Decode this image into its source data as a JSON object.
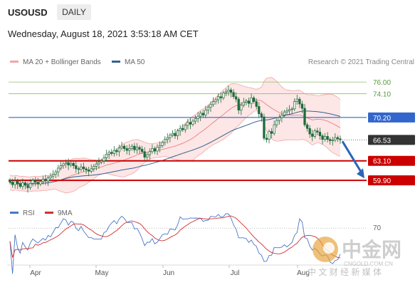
{
  "header": {
    "symbol": "USOUSD",
    "timeframe": "DAILY",
    "datetime": "Wednesday, August 18, 2021 3:53:18 AM CET"
  },
  "legend": {
    "bb_label": "MA 20 + Bollinger Bands",
    "ma50_label": "MA 50",
    "rsi_label": "RSI",
    "ma9_label": "9MA",
    "credit": "Research © 2021 Trading Central"
  },
  "watermark": {
    "cn_name": "中金网",
    "cn_sub": "中 文 财 经 新 媒 体",
    "site": "CNGOLD.COM.CN"
  },
  "colors": {
    "bb": "#f4a6a6",
    "ma50": "#35618f",
    "rsi": "#4a76c9",
    "ma9": "#d0302a",
    "resistance": "#8ec06c",
    "pivot": "#3366cc",
    "support": "#cc0000",
    "candle": "#1f6b3a"
  },
  "chart_data": {
    "type": "candlestick",
    "price_scale": {
      "min": 57,
      "max": 78
    },
    "x_labels": [
      "Apr",
      "May",
      "Jun",
      "Jul",
      "Aug"
    ],
    "levels": [
      {
        "value": 76.0,
        "label": "76.00",
        "kind": "resistance"
      },
      {
        "value": 74.1,
        "label": "74.10",
        "kind": "resistance"
      },
      {
        "value": 70.2,
        "label": "70.20",
        "kind": "pivot"
      },
      {
        "value": 66.53,
        "label": "66.53",
        "kind": "last"
      },
      {
        "value": 63.1,
        "label": "63.10",
        "kind": "support"
      },
      {
        "value": 59.9,
        "label": "59.90",
        "kind": "support"
      }
    ],
    "forecast": {
      "from": 66.53,
      "to": 60.0
    },
    "rsi_level": 70,
    "rsi_level_label": "70",
    "closes": [
      59.6,
      59.2,
      59.8,
      59.3,
      58.9,
      59.5,
      59.1,
      58.7,
      59.4,
      59.9,
      59.6,
      59.3,
      59.7,
      60.1,
      59.8,
      60.3,
      60.6,
      60.9,
      61.3,
      61.9,
      62.3,
      62.6,
      62.8,
      62.4,
      62.7,
      62.3,
      61.8,
      61.7,
      62.1,
      61.8,
      61.6,
      61.4,
      61.8,
      62.2,
      62.6,
      62.9,
      63.1,
      63.6,
      64.2,
      64.5,
      64.3,
      64.8,
      64.6,
      65.2,
      65.5,
      65.1,
      64.8,
      65.1,
      65.5,
      64.9,
      65.3,
      65.0,
      64.6,
      63.7,
      64.1,
      64.6,
      65.1,
      64.7,
      65.3,
      65.6,
      66.1,
      66.6,
      66.9,
      67.3,
      67.6,
      67.2,
      68.0,
      68.4,
      68.2,
      68.9,
      69.4,
      69.1,
      69.6,
      70.0,
      70.4,
      70.9,
      70.6,
      71.4,
      71.9,
      72.3,
      72.8,
      73.1,
      73.6,
      73.4,
      74.2,
      74.4,
      74.7,
      74.3,
      73.6,
      73.2,
      71.4,
      72.2,
      72.7,
      72.9,
      72.5,
      73.4,
      72.8,
      72.0,
      70.8,
      70.3,
      66.8,
      66.6,
      67.9,
      67.6,
      69.0,
      69.7,
      70.2,
      70.6,
      71.1,
      71.3,
      71.5,
      71.6,
      72.8,
      73.2,
      72.4,
      71.7,
      69.0,
      68.4,
      67.5,
      67.1,
      68.0,
      67.8,
      67.2,
      66.6,
      67.1,
      66.6,
      66.4,
      66.5,
      66.9,
      66.7,
      66.53
    ]
  }
}
